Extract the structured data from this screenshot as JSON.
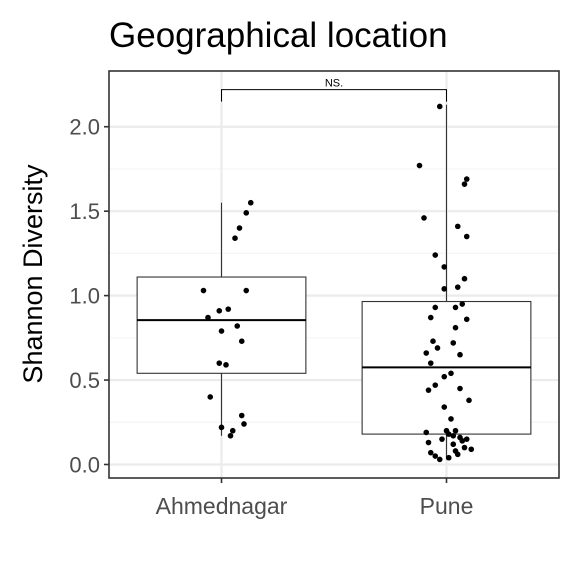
{
  "chart_data": {
    "type": "boxplot",
    "title": "Geographical location",
    "xlabel": "",
    "ylabel": "Shannon Diversity",
    "ylim": [
      -0.08,
      2.33
    ],
    "yticks": [
      0.0,
      0.5,
      1.0,
      1.5,
      2.0
    ],
    "ytick_labels": [
      "0.0",
      "0.5",
      "1.0",
      "1.5",
      "2.0"
    ],
    "categories": [
      "Ahmednagar",
      "Pune"
    ],
    "grid": true,
    "colors": {
      "panel_border": "#333333",
      "grid_major": "#ebebeb",
      "grid_minor": "#f5f5f5",
      "points": "#000000",
      "box": "#333333"
    },
    "significance": {
      "label": "NS.",
      "between": [
        "Ahmednagar",
        "Pune"
      ],
      "y": 2.22
    },
    "boxes": [
      {
        "category": "Ahmednagar",
        "q1": 0.54,
        "median": 0.855,
        "q3": 1.11,
        "whisker_low": 0.17,
        "whisker_high": 1.55
      },
      {
        "category": "Pune",
        "q1": 0.18,
        "median": 0.575,
        "q3": 0.965,
        "whisker_low": 0.03,
        "whisker_high": 2.13
      }
    ],
    "points": [
      {
        "category": "Ahmednagar",
        "jitter": [
          0.11,
          0.13,
          0.08,
          0.06,
          -0.08,
          0.03,
          0.11,
          -0.01,
          -0.06,
          0.07,
          0.0,
          0.09,
          -0.01,
          0.02,
          -0.05,
          0.09,
          0.1,
          0.0,
          0.05,
          0.04
        ],
        "values": [
          1.49,
          1.55,
          1.4,
          1.34,
          1.03,
          0.92,
          1.03,
          0.91,
          0.87,
          0.82,
          0.79,
          0.73,
          0.6,
          0.59,
          0.4,
          0.29,
          0.24,
          0.22,
          0.2,
          0.17
        ]
      },
      {
        "category": "Pune",
        "values": [
          2.12,
          1.77,
          1.69,
          1.66,
          1.46,
          1.41,
          1.35,
          1.24,
          1.17,
          1.1,
          1.05,
          1.04,
          0.95,
          0.93,
          0.93,
          0.86,
          0.87,
          0.81,
          0.72,
          0.73,
          0.69,
          0.66,
          0.65,
          0.6,
          0.54,
          0.52,
          0.47,
          0.45,
          0.44,
          0.38,
          0.34,
          0.27,
          0.2,
          0.2,
          0.19,
          0.18,
          0.17,
          0.16,
          0.15,
          0.15,
          0.14,
          0.13,
          0.12,
          0.1,
          0.09,
          0.08,
          0.07,
          0.06,
          0.05,
          0.04,
          0.03
        ],
        "jitter": [
          -0.03,
          -0.12,
          0.09,
          0.08,
          -0.1,
          0.05,
          0.09,
          -0.05,
          -0.01,
          0.08,
          0.05,
          -0.01,
          0.07,
          -0.05,
          0.04,
          0.09,
          -0.07,
          0.04,
          0.03,
          -0.06,
          -0.04,
          -0.09,
          0.06,
          -0.07,
          0.02,
          -0.01,
          -0.05,
          0.06,
          -0.08,
          0.1,
          -0.01,
          0.02,
          0.04,
          0.0,
          -0.09,
          0.01,
          0.03,
          0.06,
          0.09,
          -0.02,
          0.07,
          -0.08,
          0.03,
          0.08,
          0.11,
          0.04,
          -0.07,
          0.05,
          -0.05,
          0.01,
          -0.03
        ]
      }
    ]
  }
}
